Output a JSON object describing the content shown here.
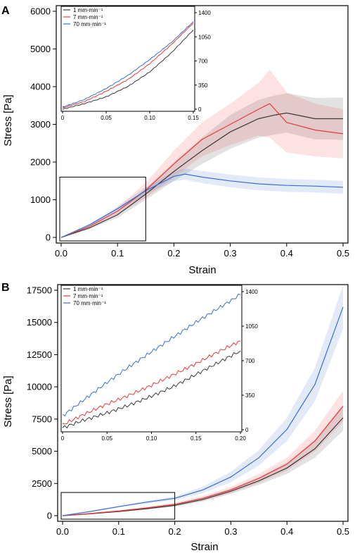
{
  "panels": [
    {
      "label": "A",
      "xlabel": "Strain",
      "ylabel": "Stress [Pa]"
    },
    {
      "label": "B",
      "xlabel": "Strain",
      "ylabel": "Stress [Pa]"
    }
  ],
  "legend": [
    {
      "name": "1 mm·min⁻¹",
      "color": "#3a3a3a"
    },
    {
      "name": "7 mm·min⁻¹",
      "color": "#e83a3a"
    },
    {
      "name": "70 mm·min⁻¹",
      "color": "#3a6fd0"
    }
  ],
  "chart_data": [
    {
      "type": "line",
      "panel": "A",
      "xlabel": "Strain",
      "ylabel": "Stress [Pa]",
      "xlim": [
        0,
        0.5
      ],
      "ylim": [
        0,
        6000
      ],
      "xticks": [
        0.0,
        0.1,
        0.2,
        0.3,
        0.4,
        0.5
      ],
      "xtick_labels": [
        "0.0",
        "0.1",
        "0.2",
        "0.3",
        "0.4",
        "0.5"
      ],
      "yticks": [
        0,
        1000,
        2000,
        3000,
        4000,
        5000,
        6000
      ],
      "ytick_labels": [
        "0",
        "1000",
        "2000",
        "3000",
        "4000",
        "5000",
        "6000"
      ],
      "series": [
        {
          "name": "1 mm·min⁻¹",
          "color": "#3a3a3a",
          "x": [
            0,
            0.05,
            0.1,
            0.15,
            0.2,
            0.25,
            0.3,
            0.35,
            0.38,
            0.4,
            0.45,
            0.5
          ],
          "y": [
            0,
            250,
            600,
            1150,
            1750,
            2300,
            2800,
            3150,
            3250,
            3300,
            3150,
            3150
          ],
          "band": [
            0,
            30,
            80,
            150,
            250,
            350,
            450,
            500,
            520,
            520,
            550,
            560
          ]
        },
        {
          "name": "7 mm·min⁻¹",
          "color": "#e83a3a",
          "x": [
            0,
            0.05,
            0.1,
            0.15,
            0.2,
            0.25,
            0.3,
            0.35,
            0.37,
            0.4,
            0.45,
            0.5
          ],
          "y": [
            0,
            290,
            700,
            1250,
            1950,
            2600,
            3000,
            3400,
            3550,
            3050,
            2850,
            2750
          ],
          "band": [
            0,
            40,
            100,
            200,
            350,
            450,
            550,
            700,
            900,
            800,
            700,
            650
          ]
        },
        {
          "name": "70 mm·min⁻¹",
          "color": "#3a6fd0",
          "x": [
            0,
            0.05,
            0.1,
            0.15,
            0.2,
            0.22,
            0.25,
            0.3,
            0.35,
            0.4,
            0.45,
            0.5
          ],
          "y": [
            0,
            330,
            760,
            1240,
            1620,
            1680,
            1600,
            1500,
            1420,
            1380,
            1360,
            1330
          ],
          "band": [
            0,
            30,
            60,
            90,
            130,
            150,
            160,
            170,
            170,
            170,
            170,
            170
          ]
        }
      ],
      "box": {
        "x": [
          0,
          0.15
        ],
        "y": [
          0,
          1600
        ]
      },
      "inset": {
        "xlim": [
          0,
          0.15
        ],
        "ylim": [
          0,
          1400
        ],
        "xticks": [
          0,
          0.05,
          0.1,
          0.15
        ],
        "xtick_labels": [
          "0",
          "0.05",
          "0.10",
          "0.15"
        ],
        "yticks": [
          0,
          350,
          700,
          1050,
          1400
        ],
        "ytick_labels": [
          "0",
          "350",
          "700",
          "1050",
          "1400"
        ],
        "series": [
          {
            "name": "1 mm·min⁻¹",
            "x": [
              0,
              0.025,
              0.05,
              0.075,
              0.1,
              0.125,
              0.15
            ],
            "y": [
              0,
              80,
              180,
              330,
              540,
              820,
              1150
            ]
          },
          {
            "name": "7 mm·min⁻¹",
            "x": [
              0,
              0.025,
              0.05,
              0.075,
              0.1,
              0.125,
              0.15
            ],
            "y": [
              20,
              110,
              260,
              430,
              660,
              940,
              1250
            ]
          },
          {
            "name": "70 mm·min⁻¹",
            "x": [
              0,
              0.025,
              0.05,
              0.075,
              0.1,
              0.125,
              0.15
            ],
            "y": [
              30,
              140,
              300,
              490,
              720,
              970,
              1270
            ]
          }
        ]
      }
    },
    {
      "type": "line",
      "panel": "B",
      "xlabel": "Strain",
      "ylabel": "Stress [Pa]",
      "xlim": [
        0,
        0.5
      ],
      "ylim": [
        0,
        17500
      ],
      "xticks": [
        0.0,
        0.1,
        0.2,
        0.3,
        0.4,
        0.5
      ],
      "xtick_labels": [
        "0.0",
        "0.1",
        "0.2",
        "0.3",
        "0.4",
        "0.5"
      ],
      "yticks": [
        0,
        2500,
        5000,
        7500,
        10000,
        12500,
        15000,
        17500
      ],
      "ytick_labels": [
        "0",
        "2500",
        "5000",
        "7500",
        "10000",
        "12500",
        "15000",
        "17500"
      ],
      "series": [
        {
          "name": "1 mm·min⁻¹",
          "color": "#3a3a3a",
          "x": [
            0,
            0.05,
            0.1,
            0.15,
            0.2,
            0.25,
            0.3,
            0.35,
            0.4,
            0.45,
            0.5
          ],
          "y": [
            0,
            150,
            320,
            540,
            800,
            1250,
            1900,
            2700,
            3700,
            5200,
            7600
          ],
          "band": [
            0,
            20,
            40,
            60,
            100,
            150,
            200,
            300,
            450,
            700,
            1000
          ]
        },
        {
          "name": "7 mm·min⁻¹",
          "color": "#e83a3a",
          "x": [
            0,
            0.05,
            0.1,
            0.15,
            0.2,
            0.25,
            0.3,
            0.35,
            0.4,
            0.45,
            0.5
          ],
          "y": [
            0,
            170,
            360,
            600,
            880,
            1350,
            2000,
            2900,
            4000,
            5800,
            8500
          ],
          "band": [
            0,
            30,
            50,
            80,
            120,
            180,
            250,
            350,
            500,
            800,
            1200
          ]
        },
        {
          "name": "70 mm·min⁻¹",
          "color": "#3a6fd0",
          "x": [
            0,
            0.05,
            0.1,
            0.15,
            0.2,
            0.25,
            0.3,
            0.35,
            0.4,
            0.45,
            0.5
          ],
          "y": [
            0,
            330,
            700,
            1050,
            1350,
            2000,
            3000,
            4500,
            6700,
            10200,
            16200
          ],
          "band": [
            0,
            30,
            60,
            100,
            150,
            250,
            400,
            600,
            900,
            1300,
            1700
          ]
        }
      ],
      "box": {
        "x": [
          0,
          0.2
        ],
        "y": [
          0,
          1800
        ]
      },
      "inset": {
        "xlim": [
          0,
          0.2
        ],
        "ylim": [
          0,
          1400
        ],
        "xticks": [
          0,
          0.05,
          0.1,
          0.15,
          0.2
        ],
        "xtick_labels": [
          "0",
          "0.05",
          "0.10",
          "0.15",
          "0.20"
        ],
        "yticks": [
          0,
          350,
          700,
          1050,
          1400
        ],
        "ytick_labels": [
          "0",
          "350",
          "700",
          "1050",
          "1400"
        ],
        "series": [
          {
            "name": "1 mm·min⁻¹",
            "x": [
              0,
              0.025,
              0.05,
              0.075,
              0.1,
              0.125,
              0.15,
              0.175,
              0.2
            ],
            "y": [
              20,
              100,
              170,
              250,
              340,
              440,
              560,
              680,
              800
            ]
          },
          {
            "name": "7 mm·min⁻¹",
            "x": [
              0,
              0.025,
              0.05,
              0.075,
              0.1,
              0.125,
              0.15,
              0.175,
              0.2
            ],
            "y": [
              50,
              160,
              260,
              350,
              450,
              560,
              670,
              790,
              900
            ]
          },
          {
            "name": "70 mm·min⁻¹",
            "x": [
              0,
              0.025,
              0.05,
              0.075,
              0.1,
              0.125,
              0.15,
              0.175,
              0.2
            ],
            "y": [
              140,
              310,
              480,
              640,
              790,
              940,
              1090,
              1230,
              1370
            ]
          }
        ]
      }
    }
  ]
}
